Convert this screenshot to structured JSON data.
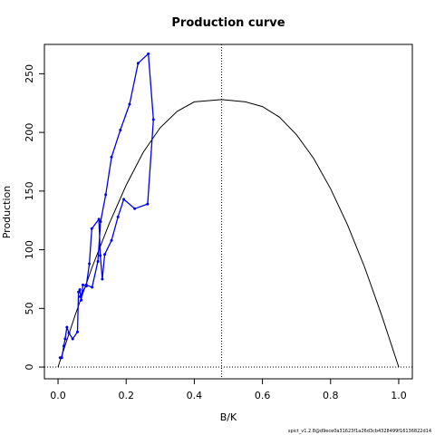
{
  "chart_data": {
    "type": "line",
    "title": "Production curve",
    "xlabel": "B/K",
    "ylabel": "Production",
    "xlim": [
      -0.04,
      1.04
    ],
    "ylim": [
      -10,
      275
    ],
    "x_ticks": [
      0.0,
      0.2,
      0.4,
      0.6,
      0.8,
      1.0
    ],
    "x_tick_labels": [
      "0.0",
      "0.2",
      "0.4",
      "0.6",
      "0.8",
      "1.0"
    ],
    "y_ticks": [
      0,
      50,
      100,
      150,
      200,
      250
    ],
    "y_tick_labels": [
      "0",
      "50",
      "100",
      "150",
      "200",
      "250"
    ],
    "grid": false,
    "footnote": "spict_v1.2.8@d9ece0a31623f1a26d3cb4328499f16136822d14",
    "reference_lines": {
      "bmsy_over_k": 0.48,
      "zero_production": 0
    },
    "series": [
      {
        "type": "curve",
        "color": "#000000",
        "points": [
          [
            0.0,
            0
          ],
          [
            0.05,
            44
          ],
          [
            0.1,
            85
          ],
          [
            0.15,
            122
          ],
          [
            0.2,
            155
          ],
          [
            0.25,
            183
          ],
          [
            0.3,
            204
          ],
          [
            0.35,
            218
          ],
          [
            0.4,
            226
          ],
          [
            0.48,
            228
          ],
          [
            0.55,
            226
          ],
          [
            0.6,
            222
          ],
          [
            0.65,
            213
          ],
          [
            0.7,
            198
          ],
          [
            0.75,
            178
          ],
          [
            0.8,
            152
          ],
          [
            0.85,
            121
          ],
          [
            0.9,
            85
          ],
          [
            0.95,
            44
          ],
          [
            1.0,
            0
          ]
        ]
      },
      {
        "type": "observed",
        "color": "#0000ee",
        "points": [
          [
            0.006,
            8
          ],
          [
            0.011,
            8
          ],
          [
            0.017,
            18
          ],
          [
            0.021,
            24
          ],
          [
            0.026,
            34
          ],
          [
            0.032,
            29
          ],
          [
            0.043,
            24
          ],
          [
            0.057,
            30
          ],
          [
            0.06,
            64
          ],
          [
            0.064,
            66
          ],
          [
            0.068,
            57
          ],
          [
            0.073,
            70
          ],
          [
            0.083,
            69
          ],
          [
            0.092,
            88
          ],
          [
            0.099,
            118
          ],
          [
            0.12,
            126
          ],
          [
            0.124,
            95
          ],
          [
            0.13,
            75
          ],
          [
            0.137,
            96
          ],
          [
            0.157,
            108
          ],
          [
            0.176,
            128
          ],
          [
            0.193,
            143
          ],
          [
            0.225,
            135
          ],
          [
            0.263,
            139
          ],
          [
            0.28,
            211
          ],
          [
            0.265,
            267
          ],
          [
            0.235,
            259
          ],
          [
            0.21,
            224
          ],
          [
            0.183,
            202
          ],
          [
            0.157,
            179
          ],
          [
            0.14,
            147
          ],
          [
            0.125,
            124
          ],
          [
            0.117,
            90
          ],
          [
            0.1,
            68
          ],
          [
            0.083,
            70
          ],
          [
            0.065,
            60
          ]
        ]
      }
    ]
  }
}
